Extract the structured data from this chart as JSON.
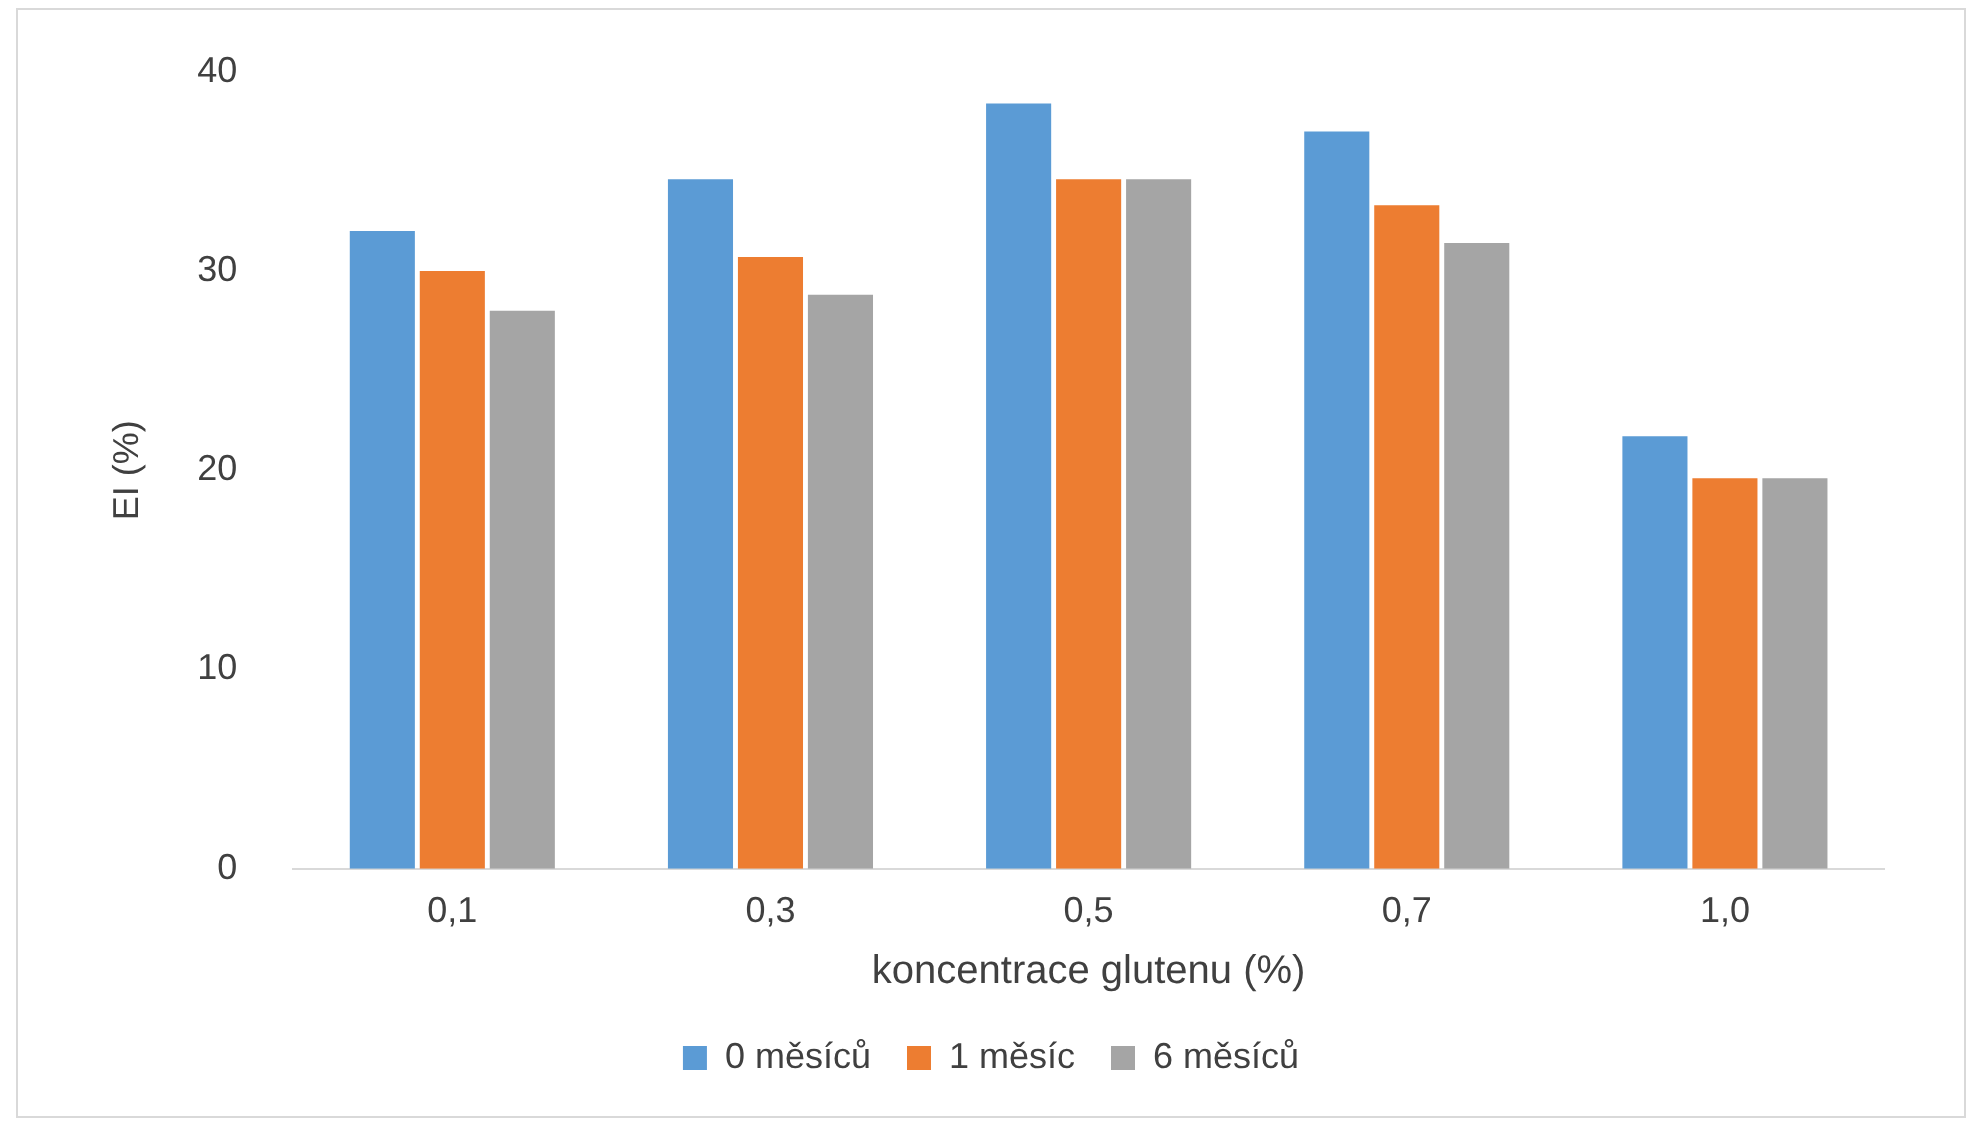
{
  "chart_data": {
    "type": "bar",
    "xlabel": "koncentrace glutenu (%)",
    "ylabel": "EI (%)",
    "categories": [
      "0,1",
      "0,3",
      "0,5",
      "0,7",
      "1,0"
    ],
    "series": [
      {
        "name": "0 měsíců",
        "color": "#5b9bd5",
        "values": [
          32,
          34.6,
          38.4,
          37,
          21.7
        ]
      },
      {
        "name": "1 měsíc",
        "color": "#ed7d31",
        "values": [
          30,
          30.7,
          34.6,
          33.3,
          19.6
        ]
      },
      {
        "name": "6 měsíců",
        "color": "#a5a5a5",
        "values": [
          28,
          28.8,
          34.6,
          31.4,
          19.6
        ]
      }
    ],
    "ylim": [
      0,
      40
    ],
    "yticks": [
      0,
      10,
      20,
      30,
      40
    ],
    "grid": false,
    "legend": "bottom"
  }
}
